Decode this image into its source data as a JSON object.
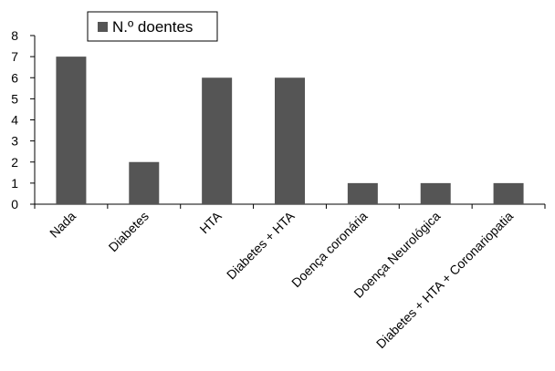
{
  "chart_data": {
    "type": "bar",
    "categories": [
      "Nada",
      "Diabetes",
      "HTA",
      "Diabetes + HTA",
      "Doença coronária",
      "Doença Neurológica",
      "Diabetes + HTA + Coronariopatia"
    ],
    "series": [
      {
        "name": "N.º doentes",
        "values": [
          7,
          2,
          6,
          6,
          1,
          1,
          1
        ],
        "color": "#555555"
      }
    ],
    "ylim": [
      0,
      8
    ],
    "yticks": [
      "0",
      "1",
      "2",
      "3",
      "4",
      "5",
      "6",
      "7",
      "8"
    ],
    "grid": false,
    "legend_position": "top-left",
    "title": "",
    "xlabel": "",
    "ylabel": ""
  }
}
